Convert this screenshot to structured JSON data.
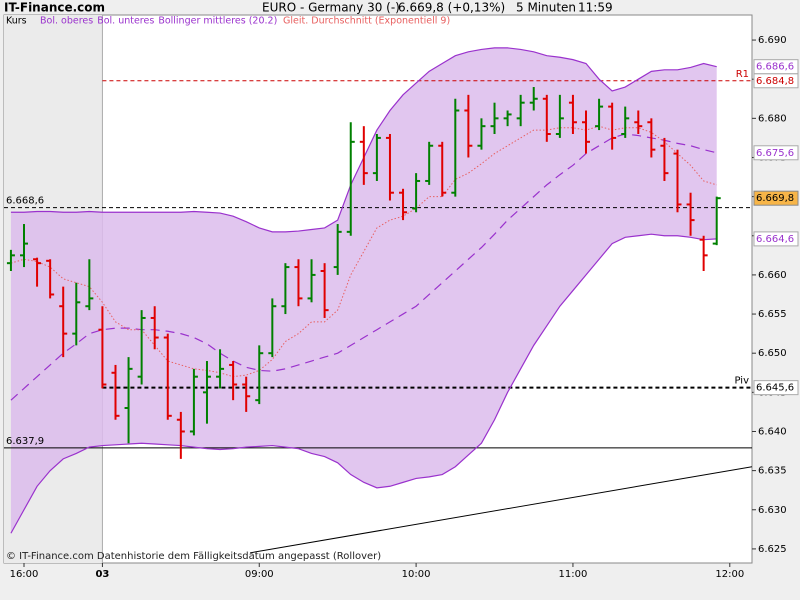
{
  "site": "IT-Finance.com",
  "chart_data": {
    "type": "ohlc",
    "title": "EURO - Germany 30 (-)",
    "price_text": "6.669,8 (+0,13%)",
    "interval": "5 Minuten",
    "time": "11:59",
    "footnote": "© IT-Finance.com  Datenhistorie dem Fälligkeitsdatum angepasst (Rollover)",
    "x": [
      -1,
      0,
      1,
      2,
      3,
      4,
      5,
      6,
      7,
      8,
      9,
      10,
      11,
      12,
      13,
      14,
      15,
      16,
      17,
      18,
      19,
      20,
      21,
      22,
      23,
      24,
      25,
      26,
      27,
      28,
      29,
      30,
      31,
      32,
      33,
      34,
      35,
      36,
      37,
      38,
      39,
      40,
      41,
      42,
      43,
      44,
      45,
      46,
      47,
      48,
      49,
      50,
      51,
      52,
      53
    ],
    "xlim": [
      -1.53,
      55.7
    ],
    "xticks": [
      {
        "value": 0,
        "label": "16:00"
      },
      {
        "value": 6,
        "label": "03"
      },
      {
        "value": 18,
        "label": "09:00"
      },
      {
        "value": 30,
        "label": "10:00"
      },
      {
        "value": 42,
        "label": "11:00"
      },
      {
        "value": 54,
        "label": "12:00"
      }
    ],
    "ylim": [
      6.6232,
      6.6932
    ],
    "yticks": [
      {
        "value": 6.625,
        "label": "6.625"
      },
      {
        "value": 6.63,
        "label": "6.630"
      },
      {
        "value": 6.635,
        "label": "6.635"
      },
      {
        "value": 6.64,
        "label": "6.640"
      },
      {
        "value": 6.645,
        "label": "6.645"
      },
      {
        "value": 6.65,
        "label": "6.650"
      },
      {
        "value": 6.655,
        "label": "6.655"
      },
      {
        "value": 6.66,
        "label": "6.660"
      },
      {
        "value": 6.665,
        "label": "6.665"
      },
      {
        "value": 6.67,
        "label": "6.670"
      },
      {
        "value": 6.675,
        "label": "6.675"
      },
      {
        "value": 6.68,
        "label": "6.680"
      },
      {
        "value": 6.685,
        "label": "6.685"
      },
      {
        "value": 6.69,
        "label": "6.690"
      }
    ],
    "up_color": "#008000",
    "down_color": "#e00000",
    "ohlc": {
      "name": "Kurs",
      "color": "#000000",
      "last_label": "6.669,8",
      "open": [
        6.6615,
        6.6625,
        6.662,
        6.6618,
        6.656,
        6.6525,
        6.656,
        6.653,
        6.6475,
        6.643,
        6.647,
        6.6545,
        6.652,
        6.6415,
        6.64,
        6.645,
        6.647,
        6.6485,
        6.646,
        6.644,
        6.65,
        6.656,
        6.661,
        6.657,
        6.6605,
        6.661,
        6.6655,
        6.677,
        6.673,
        6.6775,
        6.6705,
        6.6685,
        6.672,
        6.6765,
        6.6705,
        6.681,
        6.6765,
        6.679,
        6.68,
        6.68,
        6.682,
        6.6825,
        6.678,
        6.682,
        6.6795,
        6.679,
        6.6815,
        6.678,
        6.6795,
        6.6795,
        6.6765,
        6.6755,
        6.669,
        6.6645,
        6.664
      ],
      "high": [
        6.6632,
        6.6665,
        6.6622,
        6.662,
        6.6585,
        6.659,
        6.662,
        6.656,
        6.6485,
        6.6495,
        6.6555,
        6.656,
        6.6525,
        6.6425,
        6.648,
        6.649,
        6.6505,
        6.649,
        6.647,
        6.651,
        6.657,
        6.6615,
        6.662,
        6.662,
        6.6615,
        6.6665,
        6.6795,
        6.679,
        6.678,
        6.678,
        6.671,
        6.673,
        6.677,
        6.677,
        6.6825,
        6.683,
        6.68,
        6.682,
        6.681,
        6.683,
        6.684,
        6.683,
        6.683,
        6.683,
        6.681,
        6.6825,
        6.682,
        6.6815,
        6.681,
        6.68,
        6.6775,
        6.676,
        6.6705,
        6.665,
        6.67
      ],
      "low": [
        6.6605,
        6.661,
        6.6585,
        6.657,
        6.6495,
        6.651,
        6.6555,
        6.6455,
        6.6415,
        6.6385,
        6.646,
        6.6505,
        6.6415,
        6.6365,
        6.6395,
        6.641,
        6.6455,
        6.644,
        6.6425,
        6.6435,
        6.6495,
        6.655,
        6.656,
        6.6565,
        6.6545,
        6.66,
        6.665,
        6.6715,
        6.672,
        6.6695,
        6.667,
        6.668,
        6.6715,
        6.67,
        6.67,
        6.675,
        6.676,
        6.678,
        6.679,
        6.679,
        6.681,
        6.677,
        6.6775,
        6.678,
        6.6755,
        6.6785,
        6.676,
        6.6775,
        6.678,
        6.675,
        6.672,
        6.668,
        6.665,
        6.6605,
        6.6638
      ],
      "close": [
        6.6625,
        6.664,
        6.6615,
        6.6575,
        6.6525,
        6.6565,
        6.657,
        6.646,
        6.642,
        6.648,
        6.6545,
        6.652,
        6.642,
        6.64,
        6.647,
        6.647,
        6.648,
        6.646,
        6.6445,
        6.65,
        6.656,
        6.661,
        6.657,
        6.66,
        6.6555,
        6.6655,
        6.677,
        6.673,
        6.6775,
        6.6705,
        6.668,
        6.672,
        6.6765,
        6.6705,
        6.681,
        6.6765,
        6.679,
        6.68,
        6.6805,
        6.682,
        6.6825,
        6.678,
        6.68,
        6.6795,
        6.677,
        6.6815,
        6.6775,
        6.68,
        6.679,
        6.676,
        6.673,
        6.669,
        6.667,
        6.6625,
        6.6698
      ]
    },
    "series": [
      {
        "name": "Bol. oberes",
        "color": "#9a32cd",
        "style": "solid",
        "last_label": "6.686,6",
        "values": [
          6.668,
          6.668,
          6.6681,
          6.6681,
          6.668,
          6.668,
          6.6681,
          6.668,
          6.668,
          6.668,
          6.668,
          6.668,
          6.668,
          6.668,
          6.6681,
          6.668,
          6.6679,
          6.6675,
          6.6668,
          6.666,
          6.6655,
          6.6655,
          6.6656,
          6.6658,
          6.666,
          6.667,
          6.6715,
          6.675,
          6.6785,
          6.681,
          6.683,
          6.6845,
          6.686,
          6.687,
          6.688,
          6.6885,
          6.6888,
          6.689,
          6.689,
          6.6888,
          6.6885,
          6.688,
          6.6878,
          6.6875,
          6.687,
          6.685,
          6.6835,
          6.684,
          6.685,
          6.686,
          6.6862,
          6.6862,
          6.6865,
          6.687,
          6.6866
        ]
      },
      {
        "name": "Bol. unteres",
        "color": "#9a32cd",
        "style": "solid",
        "last_label": "6.664,6",
        "values": [
          6.627,
          6.63,
          6.633,
          6.635,
          6.6365,
          6.6372,
          6.638,
          6.6382,
          6.6383,
          6.6384,
          6.6385,
          6.6384,
          6.6383,
          6.6382,
          6.638,
          6.6378,
          6.6377,
          6.6378,
          6.638,
          6.6381,
          6.6382,
          6.638,
          6.6378,
          6.6372,
          6.6368,
          6.636,
          6.6345,
          6.6335,
          6.6328,
          6.633,
          6.6335,
          6.634,
          6.6342,
          6.6345,
          6.6355,
          6.637,
          6.6385,
          6.6415,
          6.645,
          6.648,
          6.651,
          6.6535,
          6.656,
          6.658,
          6.66,
          6.662,
          6.664,
          6.6648,
          6.665,
          6.6652,
          6.665,
          6.665,
          6.6648,
          6.6645,
          6.6646
        ]
      },
      {
        "name": "Bollinger mittleres (20.2)",
        "color": "#9a32cd",
        "style": "dashed",
        "last_label": "6.675,6",
        "values": [
          6.644,
          6.6455,
          6.647,
          6.6485,
          6.65,
          6.6512,
          6.6525,
          6.653,
          6.6532,
          6.6532,
          6.653,
          6.653,
          6.6528,
          6.6525,
          6.652,
          6.6512,
          6.65,
          6.649,
          6.6482,
          6.6478,
          6.6477,
          6.648,
          6.6485,
          6.649,
          6.6495,
          6.65,
          6.651,
          6.652,
          6.653,
          6.654,
          6.655,
          6.656,
          6.6575,
          6.659,
          6.6605,
          6.662,
          6.6635,
          6.6652,
          6.667,
          6.6685,
          6.67,
          6.6715,
          6.6728,
          6.674,
          6.6755,
          6.6765,
          6.6775,
          6.678,
          6.6778,
          6.6775,
          6.6772,
          6.6768,
          6.6765,
          6.676,
          6.6756
        ]
      },
      {
        "name": "Gleit. Durchschnitt (Exponentiell 9)",
        "color": "#e86060",
        "style": "dotted",
        "values": [
          6.6615,
          6.662,
          6.6617,
          6.661,
          6.6595,
          6.659,
          6.6585,
          6.6565,
          6.654,
          6.653,
          6.653,
          6.651,
          6.649,
          6.6485,
          6.648,
          6.6478,
          6.6475,
          6.647,
          6.6472,
          6.6478,
          6.6492,
          6.6515,
          6.6525,
          6.654,
          6.654,
          6.6555,
          6.66,
          6.663,
          6.666,
          6.667,
          6.6675,
          6.6685,
          6.67,
          6.67,
          6.6722,
          6.673,
          6.6742,
          6.6755,
          6.6765,
          6.6775,
          6.6785,
          6.6785,
          6.6788,
          6.6788,
          6.6785,
          6.679,
          6.6785,
          6.6788,
          6.6788,
          6.6782,
          6.677,
          6.6755,
          6.674,
          6.672,
          6.6715
        ]
      }
    ],
    "levels": [
      {
        "name": "R1",
        "value": 6.6848,
        "label": "6.684,8",
        "color": "#cc0000",
        "style": "dashed",
        "span": "session",
        "side": "right"
      },
      {
        "name": "Piv",
        "value": 6.6456,
        "label": "6.645,6",
        "color": "#000000",
        "style": "dashed-bold",
        "span": "session",
        "side": "right"
      },
      {
        "value": 6.6686,
        "label": "6.668,6",
        "color": "#000000",
        "style": "dashed",
        "span": "all",
        "side": "left"
      },
      {
        "value": 6.6379,
        "label": "6.637,9",
        "color": "#000000",
        "style": "solid",
        "span": "all",
        "side": "left"
      }
    ],
    "trendline": {
      "x": [
        17.3,
        55.7
      ],
      "values": [
        6.6245,
        6.6355
      ],
      "color": "#000000"
    },
    "band_fill": "#dcbcec",
    "session_shade": "#ebebeb"
  }
}
